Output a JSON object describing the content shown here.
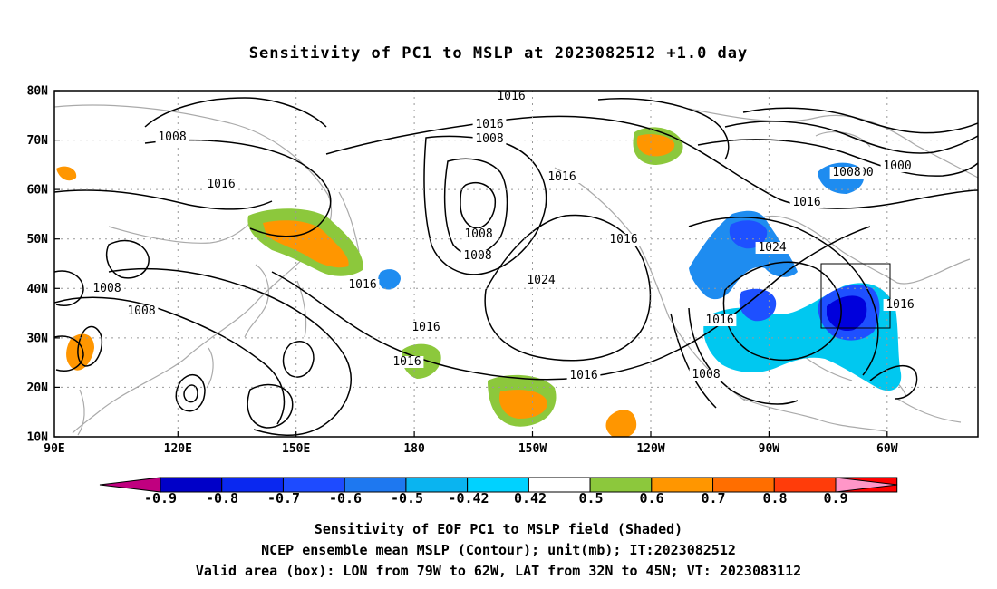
{
  "title": "Sensitivity of PC1 to MSLP at 2023082512 +1.0 day",
  "axes": {
    "lat_labels": [
      "80N",
      "70N",
      "60N",
      "50N",
      "40N",
      "30N",
      "20N",
      "10N"
    ],
    "lon_labels": [
      "90E",
      "120E",
      "150E",
      "180",
      "150W",
      "120W",
      "90W",
      "60W"
    ]
  },
  "contour_labels": [
    "1016",
    "1008",
    "1016",
    "1016",
    "1008",
    "1016",
    "1000",
    "1016",
    "1008",
    "1008",
    "1008",
    "1016",
    "1000",
    "1008",
    "1024",
    "1016",
    "1008",
    "1016",
    "1016",
    "1016",
    "1024",
    "1016",
    "1016",
    "1008",
    "1016"
  ],
  "colorbar": {
    "labels": [
      "-0.9",
      "-0.8",
      "-0.7",
      "-0.6",
      "-0.5",
      "-0.42",
      "0.42",
      "0.5",
      "0.6",
      "0.7",
      "0.8",
      "0.9"
    ],
    "colors": [
      "#c0007f",
      "#0000c8",
      "#0a28f0",
      "#1e4bff",
      "#1e78f0",
      "#0ab4f0",
      "#00d2ff",
      "#ffffff",
      "#8cc83c",
      "#ff9600",
      "#ff6e00",
      "#ff3c0a",
      "#ff0000",
      "#ff96c8"
    ]
  },
  "shading_colors": {
    "neg_light": "#00c8f0",
    "neg_mid": "#1e8cf0",
    "neg_dark": "#1e50ff",
    "neg_darkest": "#0000dc",
    "pos_green": "#8cc83c",
    "pos_orange": "#ff9600",
    "pos_red": "#ff5a00"
  },
  "valid_box": {
    "lon_from": "79W",
    "lon_to": "62W",
    "lat_from": "32N",
    "lat_to": "45N"
  },
  "captions": {
    "line1": "Sensitivity of EOF PC1 to MSLP field (Shaded)",
    "line2": "NCEP ensemble mean MSLP (Contour); unit(mb); IT:2023082512",
    "line3": "Valid area (box): LON from 79W to 62W, LAT from 32N to 45N; VT: 2023083112"
  }
}
